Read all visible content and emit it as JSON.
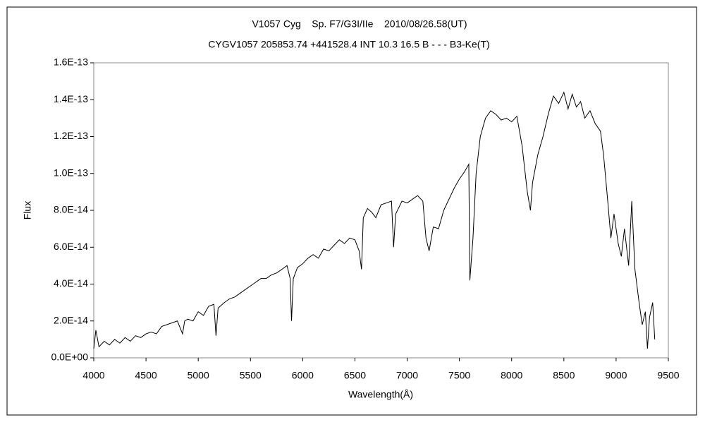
{
  "chart_data": {
    "type": "line",
    "title": "V1057 Cyg    Sp. F7/G3I/IIe    2010/08/26.58(UT)",
    "subtitle": "CYGV1057 205853.74 +441528.4 INT 10.3 16.5 B - - - B3-Ke(T)",
    "xlabel": "Wavelength(Å)",
    "ylabel": "Flux",
    "xlim": [
      4000,
      9500
    ],
    "xticks": [
      4000,
      4500,
      5000,
      5500,
      6000,
      6500,
      7000,
      7500,
      8000,
      8500,
      9000,
      9500
    ],
    "ylim": [
      0,
      1.6e-13
    ],
    "yticks": [
      {
        "value": 0,
        "label": "0.0E+00"
      },
      {
        "value": 2e-14,
        "label": "2.0E-14"
      },
      {
        "value": 4e-14,
        "label": "4.0E-14"
      },
      {
        "value": 6e-14,
        "label": "6.0E-14"
      },
      {
        "value": 8e-14,
        "label": "8.0E-14"
      },
      {
        "value": 1e-13,
        "label": "1.0E-13"
      },
      {
        "value": 1.2e-13,
        "label": "1.2E-13"
      },
      {
        "value": 1.4e-13,
        "label": "1.4E-13"
      },
      {
        "value": 1.6e-13,
        "label": "1.6E-13"
      }
    ],
    "grid": false,
    "color": "#000000",
    "x": [
      4000,
      4020,
      4050,
      4100,
      4150,
      4200,
      4250,
      4300,
      4350,
      4400,
      4450,
      4500,
      4550,
      4600,
      4650,
      4700,
      4750,
      4800,
      4850,
      4870,
      4900,
      4950,
      5000,
      5050,
      5100,
      5150,
      5170,
      5190,
      5250,
      5300,
      5350,
      5400,
      5450,
      5500,
      5550,
      5600,
      5650,
      5700,
      5750,
      5800,
      5850,
      5880,
      5893,
      5910,
      5950,
      6000,
      6050,
      6100,
      6150,
      6200,
      6250,
      6300,
      6350,
      6400,
      6450,
      6500,
      6540,
      6563,
      6580,
      6620,
      6660,
      6700,
      6750,
      6800,
      6850,
      6870,
      6890,
      6950,
      7000,
      7050,
      7100,
      7150,
      7180,
      7210,
      7250,
      7300,
      7350,
      7400,
      7450,
      7500,
      7550,
      7590,
      7600,
      7630,
      7660,
      7700,
      7750,
      7800,
      7850,
      7900,
      7950,
      8000,
      8050,
      8100,
      8150,
      8180,
      8200,
      8250,
      8300,
      8350,
      8400,
      8450,
      8500,
      8540,
      8580,
      8620,
      8660,
      8700,
      8750,
      8800,
      8850,
      8880,
      8920,
      8950,
      8980,
      9020,
      9050,
      9080,
      9120,
      9150,
      9180,
      9220,
      9250,
      9280,
      9300,
      9320,
      9350,
      9370
    ],
    "values": [
      5e-15,
      1.5e-14,
      6e-15,
      9e-15,
      7e-15,
      1e-14,
      8e-15,
      1.1e-14,
      9e-15,
      1.2e-14,
      1.1e-14,
      1.3e-14,
      1.4e-14,
      1.3e-14,
      1.7e-14,
      1.8e-14,
      1.9e-14,
      2e-14,
      1.3e-14,
      2e-14,
      2.1e-14,
      2e-14,
      2.5e-14,
      2.3e-14,
      2.8e-14,
      2.9e-14,
      1.2e-14,
      2.7e-14,
      3e-14,
      3.2e-14,
      3.3e-14,
      3.5e-14,
      3.7e-14,
      3.9e-14,
      4.1e-14,
      4.3e-14,
      4.3e-14,
      4.5e-14,
      4.6e-14,
      4.8e-14,
      5e-14,
      4.3e-14,
      2e-14,
      4.3e-14,
      4.9e-14,
      5.1e-14,
      5.4e-14,
      5.6e-14,
      5.4e-14,
      5.9e-14,
      5.8e-14,
      6.1e-14,
      6.4e-14,
      6.2e-14,
      6.5e-14,
      6.4e-14,
      5.8e-14,
      4.8e-14,
      7.6e-14,
      8.1e-14,
      7.9e-14,
      7.6e-14,
      8.3e-14,
      8.4e-14,
      8.5e-14,
      6e-14,
      7.8e-14,
      8.5e-14,
      8.4e-14,
      8.6e-14,
      8.8e-14,
      8.5e-14,
      6.5e-14,
      5.8e-14,
      7.1e-14,
      7e-14,
      8e-14,
      8.6e-14,
      9.2e-14,
      9.7e-14,
      1.01e-13,
      1.05e-13,
      4.2e-14,
      6.5e-14,
      1e-13,
      1.2e-13,
      1.3e-13,
      1.34e-13,
      1.32e-13,
      1.29e-13,
      1.3e-13,
      1.28e-13,
      1.31e-13,
      1.15e-13,
      9e-14,
      8e-14,
      9.5e-14,
      1.1e-13,
      1.2e-13,
      1.32e-13,
      1.42e-13,
      1.38e-13,
      1.44e-13,
      1.35e-13,
      1.43e-13,
      1.36e-13,
      1.39e-13,
      1.3e-13,
      1.34e-13,
      1.27e-13,
      1.23e-13,
      1.1e-13,
      8.5e-14,
      6.5e-14,
      7.8e-14,
      6.2e-14,
      5.5e-14,
      7e-14,
      5e-14,
      8.5e-14,
      4.8e-14,
      3e-14,
      1.8e-14,
      2.5e-14,
      5e-15,
      2.2e-14,
      3e-14,
      1e-14
    ]
  }
}
